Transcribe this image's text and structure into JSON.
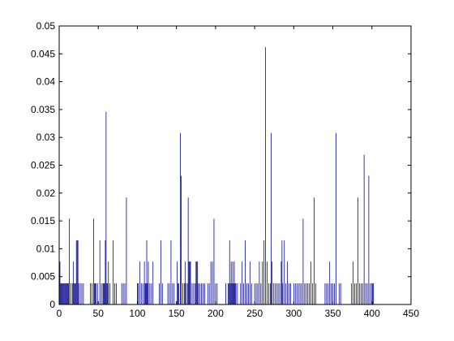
{
  "chart_data": {
    "type": "bar",
    "title": "",
    "xlabel": "",
    "ylabel": "",
    "xlim": [
      0,
      450
    ],
    "ylim": [
      0,
      0.05
    ],
    "grid": false,
    "legend": "none",
    "bar_color": "#00008b",
    "axis_color": "#000000",
    "xticks": [
      0,
      50,
      100,
      150,
      200,
      250,
      300,
      350,
      400,
      450
    ],
    "xtick_labels": [
      "0",
      "50",
      "100",
      "150",
      "200",
      "250",
      "300",
      "350",
      "400",
      "450"
    ],
    "yticks": [
      0,
      0.005,
      0.01,
      0.015,
      0.02,
      0.025,
      0.03,
      0.035,
      0.04,
      0.045,
      0.05
    ],
    "ytick_labels": [
      "0",
      "0.005",
      "0.01",
      "0.015",
      "0.02",
      "0.025",
      "0.03",
      "0.035",
      "0.04",
      "0.045",
      "0.05"
    ],
    "series": [
      {
        "x": [
          1,
          2,
          3,
          4,
          5,
          6,
          7,
          8,
          9,
          10,
          11,
          12,
          13,
          15,
          17,
          18,
          19,
          20,
          21,
          22,
          23,
          24,
          25,
          27,
          29,
          31,
          40,
          42,
          44,
          45,
          46,
          47,
          49,
          52,
          54,
          56,
          57,
          58,
          59,
          60,
          61,
          62,
          63,
          65,
          69,
          71,
          73,
          80,
          82,
          84,
          86,
          100,
          101,
          103,
          105,
          107,
          109,
          110,
          111,
          112,
          113,
          114,
          116,
          118,
          120,
          128,
          130,
          132,
          139,
          141,
          143,
          145,
          147,
          151,
          152,
          153,
          155,
          156,
          158,
          160,
          161,
          162,
          164,
          165,
          166,
          167,
          168,
          170,
          172,
          174,
          175,
          176,
          177,
          178,
          180,
          182,
          184,
          186,
          190,
          192,
          194,
          196,
          198,
          200,
          202,
          213,
          216,
          217,
          218,
          219,
          220,
          221,
          222,
          223,
          224,
          225,
          226,
          228,
          232,
          234,
          236,
          238,
          240,
          242,
          244,
          246,
          250,
          252,
          254,
          256,
          258,
          260,
          262,
          264,
          266,
          268,
          270,
          271,
          272,
          274,
          276,
          278,
          280,
          282,
          284,
          285,
          286,
          288,
          290,
          292,
          294,
          296,
          300,
          302,
          304,
          306,
          308,
          310,
          312,
          314,
          316,
          318,
          320,
          322,
          324,
          326,
          328,
          340,
          342,
          344,
          346,
          348,
          350,
          352,
          354,
          358,
          360,
          374,
          376,
          378,
          380,
          382,
          384,
          386,
          388,
          390,
          392,
          394,
          396,
          398,
          400,
          401,
          402
        ],
        "values": [
          0.0077,
          0.0038,
          0.0038,
          0.0038,
          0.0038,
          0.0038,
          0.0038,
          0.0038,
          0.0038,
          0.0038,
          0.0038,
          0.0038,
          0.0154,
          0.0038,
          0.0038,
          0.0077,
          0.0038,
          0.0038,
          0.0038,
          0.0115,
          0.0115,
          0.0115,
          0.0038,
          0.0038,
          0.0038,
          0.0038,
          0.0038,
          0.0038,
          0.0154,
          0.0038,
          0.0038,
          0.0038,
          0.0038,
          0.0115,
          0.0038,
          0.0038,
          0.0038,
          0.0038,
          0.0115,
          0.0346,
          0.0038,
          0.0038,
          0.0077,
          0.0038,
          0.0115,
          0.0038,
          0.0038,
          0.0038,
          0.0038,
          0.0038,
          0.0192,
          0.0038,
          0.0038,
          0.0077,
          0.0038,
          0.0038,
          0.0077,
          0.0038,
          0.0038,
          0.0115,
          0.0038,
          0.0077,
          0.0038,
          0.0038,
          0.0077,
          0.0038,
          0.0115,
          0.0038,
          0.0038,
          0.0038,
          0.0115,
          0.0038,
          0.0038,
          0.0077,
          0.0038,
          0.0038,
          0.0308,
          0.0231,
          0.0038,
          0.0038,
          0.0077,
          0.0038,
          0.0038,
          0.0192,
          0.0077,
          0.0077,
          0.0077,
          0.0038,
          0.0038,
          0.0038,
          0.0077,
          0.0077,
          0.0077,
          0.0038,
          0.0038,
          0.0038,
          0.0038,
          0.0038,
          0.0038,
          0.0038,
          0.0077,
          0.0077,
          0.0154,
          0.0038,
          0.0038,
          0.0038,
          0.0038,
          0.0038,
          0.0115,
          0.0038,
          0.0077,
          0.0038,
          0.0077,
          0.0038,
          0.0077,
          0.0038,
          0.0038,
          0.0038,
          0.0038,
          0.0077,
          0.0038,
          0.0115,
          0.0038,
          0.0038,
          0.0077,
          0.0038,
          0.0038,
          0.0038,
          0.0038,
          0.0077,
          0.0038,
          0.0077,
          0.0115,
          0.0462,
          0.0077,
          0.0038,
          0.0038,
          0.0308,
          0.0077,
          0.0038,
          0.0038,
          0.0038,
          0.0038,
          0.0038,
          0.0077,
          0.0115,
          0.0038,
          0.0115,
          0.0038,
          0.0077,
          0.0038,
          0.0038,
          0.0038,
          0.0038,
          0.0038,
          0.0038,
          0.0038,
          0.0038,
          0.0154,
          0.0038,
          0.0038,
          0.0038,
          0.0038,
          0.0077,
          0.0038,
          0.0192,
          0.0038,
          0.0038,
          0.0038,
          0.0038,
          0.0077,
          0.0038,
          0.0038,
          0.0038,
          0.0308,
          0.0038,
          0.0038,
          0.0038,
          0.0077,
          0.0038,
          0.0038,
          0.0192,
          0.0038,
          0.0038,
          0.0038,
          0.0269,
          0.0038,
          0.0038,
          0.0231,
          0.0038,
          0.0038,
          0.0038,
          0.0038
        ]
      }
    ]
  }
}
